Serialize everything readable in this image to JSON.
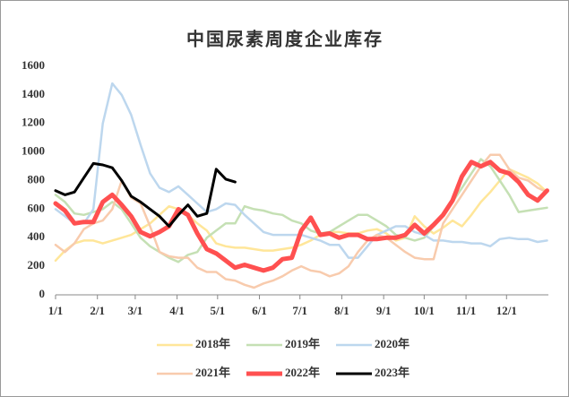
{
  "chart_data": {
    "type": "line",
    "title": "中国尿素周度企业库存",
    "x": [
      1,
      8,
      15,
      22,
      29,
      36,
      43,
      50,
      57,
      64,
      71,
      78,
      85,
      92,
      99,
      106,
      113,
      120,
      127,
      134,
      141,
      148,
      155,
      162,
      169,
      176,
      183,
      190,
      197,
      204,
      211,
      218,
      225,
      232,
      239,
      246,
      253,
      260,
      267,
      274,
      281,
      288,
      295,
      302,
      309,
      316,
      323,
      330,
      337,
      344,
      351,
      358,
      365
    ],
    "xlim": [
      1,
      366
    ],
    "xticks": [
      {
        "value": 1,
        "label": "1/1"
      },
      {
        "value": 32,
        "label": "2/1"
      },
      {
        "value": 60,
        "label": "3/1"
      },
      {
        "value": 91,
        "label": "4/1"
      },
      {
        "value": 121,
        "label": "5/1"
      },
      {
        "value": 152,
        "label": "6/1"
      },
      {
        "value": 182,
        "label": "7/1"
      },
      {
        "value": 213,
        "label": "8/1"
      },
      {
        "value": 244,
        "label": "9/1"
      },
      {
        "value": 274,
        "label": "10/1"
      },
      {
        "value": 305,
        "label": "11/1"
      },
      {
        "value": 335,
        "label": "12/1"
      }
    ],
    "ylim": [
      0,
      1600
    ],
    "yticks": [
      0,
      200,
      400,
      600,
      800,
      1000,
      1200,
      1400,
      1600
    ],
    "grid": false,
    "series": [
      {
        "name": "2018年",
        "color": "#ffe699",
        "values": [
          240,
          310,
          360,
          380,
          380,
          360,
          380,
          400,
          420,
          460,
          500,
          560,
          620,
          600,
          560,
          500,
          450,
          360,
          340,
          330,
          330,
          320,
          310,
          310,
          320,
          330,
          350,
          380,
          420,
          440,
          440,
          430,
          430,
          450,
          460,
          430,
          380,
          400,
          550,
          480,
          430,
          470,
          520,
          480,
          560,
          650,
          720,
          800,
          880,
          850,
          820,
          780,
          720
        ]
      },
      {
        "name": "2019年",
        "color": "#c5e0b4",
        "values": [
          700,
          650,
          570,
          560,
          580,
          600,
          650,
          600,
          500,
          400,
          340,
          300,
          260,
          230,
          280,
          300,
          400,
          450,
          500,
          500,
          620,
          600,
          590,
          570,
          560,
          520,
          500,
          450,
          430,
          440,
          480,
          520,
          560,
          560,
          520,
          480,
          420,
          400,
          380,
          400,
          480,
          560,
          650,
          750,
          850,
          950,
          900,
          800,
          700,
          580,
          590,
          600,
          610
        ]
      },
      {
        "name": "2020年",
        "color": "#bdd7ee",
        "values": [
          600,
          550,
          500,
          500,
          600,
          1200,
          1480,
          1400,
          1260,
          1050,
          850,
          750,
          720,
          760,
          700,
          640,
          580,
          600,
          640,
          630,
          560,
          500,
          440,
          420,
          420,
          420,
          420,
          400,
          380,
          350,
          350,
          260,
          260,
          340,
          420,
          450,
          480,
          480,
          440,
          420,
          380,
          380,
          370,
          370,
          360,
          360,
          340,
          390,
          400,
          390,
          390,
          370,
          380
        ]
      },
      {
        "name": "2021年",
        "color": "#f8cbad",
        "values": [
          350,
          300,
          360,
          460,
          500,
          520,
          600,
          800,
          680,
          640,
          480,
          300,
          270,
          260,
          260,
          190,
          160,
          160,
          110,
          100,
          70,
          50,
          80,
          100,
          130,
          170,
          200,
          170,
          160,
          130,
          150,
          200,
          300,
          380,
          420,
          400,
          350,
          300,
          260,
          250,
          250,
          500,
          600,
          700,
          800,
          900,
          980,
          980,
          880,
          820,
          800,
          750,
          720
        ]
      },
      {
        "name": "2022年",
        "color": "#ff5050",
        "values": [
          640,
          590,
          500,
          510,
          510,
          650,
          700,
          630,
          550,
          440,
          410,
          440,
          480,
          600,
          560,
          430,
          320,
          290,
          240,
          190,
          210,
          190,
          170,
          190,
          250,
          260,
          450,
          540,
          420,
          430,
          400,
          420,
          420,
          390,
          390,
          400,
          400,
          420,
          490,
          430,
          490,
          560,
          660,
          830,
          930,
          900,
          930,
          870,
          850,
          790,
          700,
          660,
          730
        ]
      },
      {
        "name": "2023年",
        "color": "#000000",
        "values": [
          730,
          700,
          720,
          820,
          920,
          910,
          890,
          800,
          690,
          650,
          600,
          550,
          480,
          560,
          630,
          550,
          570,
          880,
          810,
          790,
          null,
          null,
          null,
          null,
          null,
          null,
          null,
          null,
          null,
          null,
          null,
          null,
          null,
          null,
          null,
          null,
          null,
          null,
          null,
          null,
          null,
          null,
          null,
          null,
          null,
          null,
          null,
          null,
          null,
          null,
          null,
          null,
          null
        ]
      }
    ]
  }
}
